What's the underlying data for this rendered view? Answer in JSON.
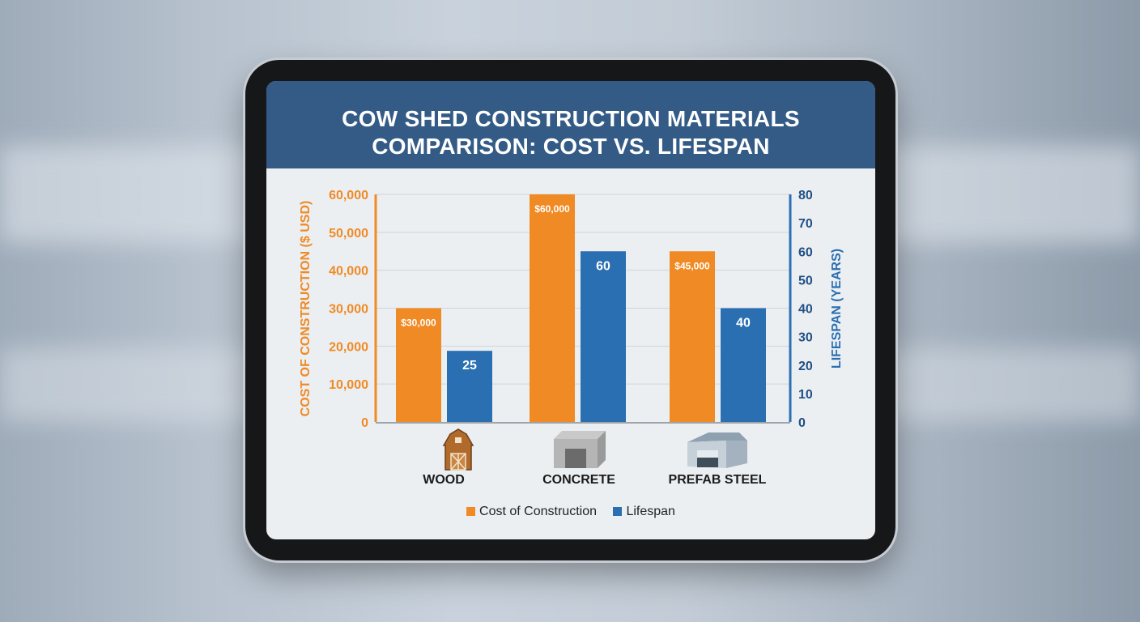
{
  "chart_data": {
    "type": "bar",
    "title": "COW SHED CONSTRUCTION MATERIALS COMPARISON: COST VS. LIFESPAN",
    "title_lines": [
      "COW SHED CONSTRUCTION MATERIALS",
      "COMPARISON: COST VS. LIFESPAN"
    ],
    "categories": [
      "WOOD",
      "CONCRETE",
      "PREFAB STEEL"
    ],
    "category_icons": [
      "wooden-barn-icon",
      "concrete-structure-icon",
      "steel-shed-icon"
    ],
    "series": [
      {
        "name": "Cost of Construction",
        "axis": "left",
        "color": "#f08a24",
        "values": [
          30000,
          60000,
          45000
        ],
        "labels": [
          "$30,000",
          "$60,000",
          "$45,000"
        ]
      },
      {
        "name": "Lifespan",
        "axis": "right",
        "color": "#2a6fb2",
        "values": [
          25,
          60,
          40
        ],
        "labels": [
          "25",
          "60",
          "40"
        ]
      }
    ],
    "ylabel": "COST OF CONSTRUCTION ($ USD)",
    "ylim": [
      0,
      60000
    ],
    "yticks": [
      "0",
      "10,000",
      "20,000",
      "30,000",
      "40,000",
      "50,000",
      "60,000"
    ],
    "y2label": "LIFESPAN (YEARS)",
    "y2lim": [
      0,
      80
    ],
    "y2ticks": [
      "0",
      "10",
      "20",
      "30",
      "40",
      "50",
      "60",
      "70",
      "80"
    ],
    "grid": true,
    "legend": "bottom"
  }
}
